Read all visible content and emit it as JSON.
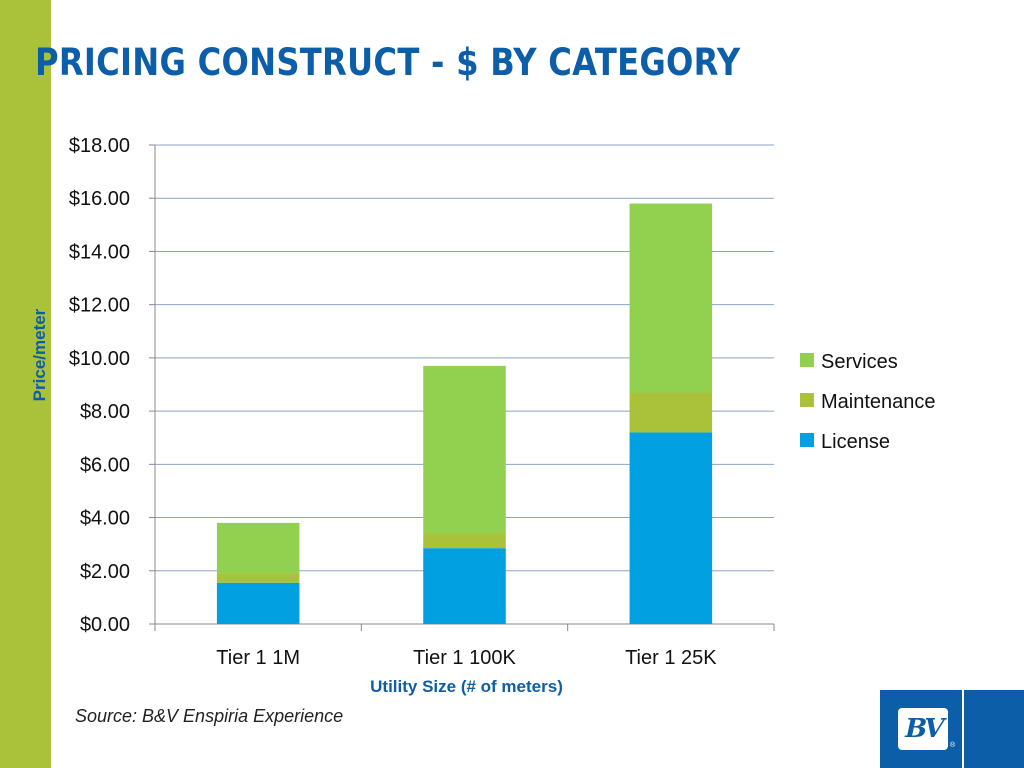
{
  "slide": {
    "title": "PRICING CONSTRUCT - $ BY CATEGORY",
    "source": "Source: B&V Enspiria Experience",
    "accent_color": "#a9c23a",
    "title_color": "#0d5ea8",
    "logo": {
      "text": "BV",
      "registered": "®",
      "color": "#0d5ea8"
    }
  },
  "chart_data": {
    "type": "bar",
    "stacked": true,
    "title": "",
    "xlabel": "Utility Size (# of meters)",
    "ylabel": "Price/meter",
    "categories": [
      "Tier 1 1M",
      "Tier 1 100K",
      "Tier 1 25K"
    ],
    "series": [
      {
        "name": "License",
        "values": [
          1.55,
          2.85,
          7.2
        ],
        "color": "#00a0e1"
      },
      {
        "name": "Maintenance",
        "values": [
          0.35,
          0.55,
          1.5
        ],
        "color": "#a9c23a"
      },
      {
        "name": "Services",
        "values": [
          1.9,
          6.3,
          7.1
        ],
        "color": "#92d050"
      }
    ],
    "ylim": [
      0,
      18
    ],
    "yticks": [
      0,
      2,
      4,
      6,
      8,
      10,
      12,
      14,
      16,
      18
    ],
    "ytick_labels": [
      "$0.00",
      "$2.00",
      "$4.00",
      "$6.00",
      "$8.00",
      "$10.00",
      "$12.00",
      "$14.00",
      "$16.00",
      "$18.00"
    ],
    "grid": true,
    "legend": {
      "position": "right",
      "order": [
        "Services",
        "Maintenance",
        "License"
      ]
    },
    "axis_label_color": "#0d5ea8",
    "grid_color": "#8ea3c8"
  }
}
